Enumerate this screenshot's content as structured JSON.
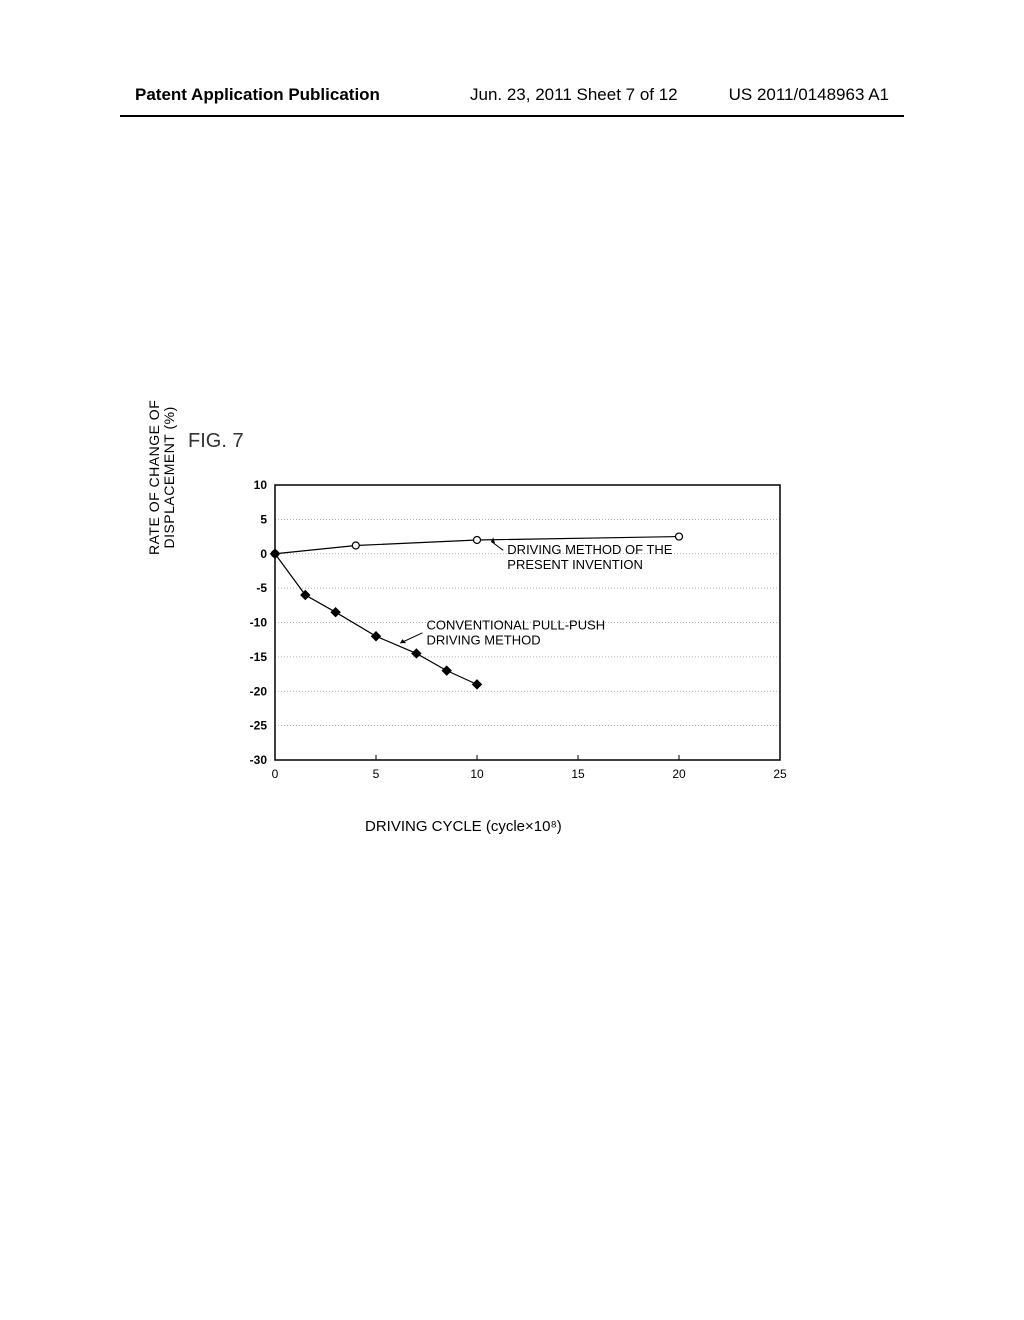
{
  "header": {
    "left": "Patent Application Publication",
    "center": "Jun. 23, 2011   Sheet 7 of 12",
    "right": "US 2011/0148963 A1"
  },
  "figure": {
    "label": "FIG. 7",
    "y_axis_label": "RATE OF CHANGE OF\nDISPLACEMENT (%)",
    "x_axis_label": "DRIVING CYCLE (cycle×10⁸)",
    "chart": {
      "type": "line",
      "xlim": [
        0,
        25
      ],
      "ylim": [
        -30,
        10
      ],
      "xtick_step": 5,
      "ytick_step": 5,
      "xticks": [
        0,
        5,
        10,
        15,
        20,
        25
      ],
      "yticks": [
        10,
        5,
        0,
        -5,
        -10,
        -15,
        -20,
        -25,
        -30
      ],
      "grid_color": "#999999",
      "grid_dash": "1,2",
      "axis_color": "#000000",
      "background_color": "#ffffff",
      "tick_fontsize": 12,
      "label_fontsize": 14,
      "series": [
        {
          "name": "present_invention",
          "label": "DRIVING METHOD OF THE\nPRESENT INVENTION",
          "label_position": {
            "x": 11.5,
            "y": 0
          },
          "x": [
            0,
            4,
            10,
            20
          ],
          "y": [
            0,
            1.2,
            2.0,
            2.5
          ],
          "marker": "circle-open",
          "marker_size": 7,
          "marker_color": "#000000",
          "line_color": "#000000",
          "line_width": 1.2
        },
        {
          "name": "conventional",
          "label": "CONVENTIONAL PULL-PUSH\nDRIVING METHOD",
          "label_position": {
            "x": 7.5,
            "y": -11
          },
          "x": [
            0,
            1.5,
            3,
            5,
            7,
            8.5,
            10
          ],
          "y": [
            0,
            -6,
            -8.5,
            -12,
            -14.5,
            -17,
            -19
          ],
          "marker": "diamond-filled",
          "marker_size": 7,
          "marker_color": "#000000",
          "line_color": "#000000",
          "line_width": 1.2
        }
      ]
    }
  }
}
